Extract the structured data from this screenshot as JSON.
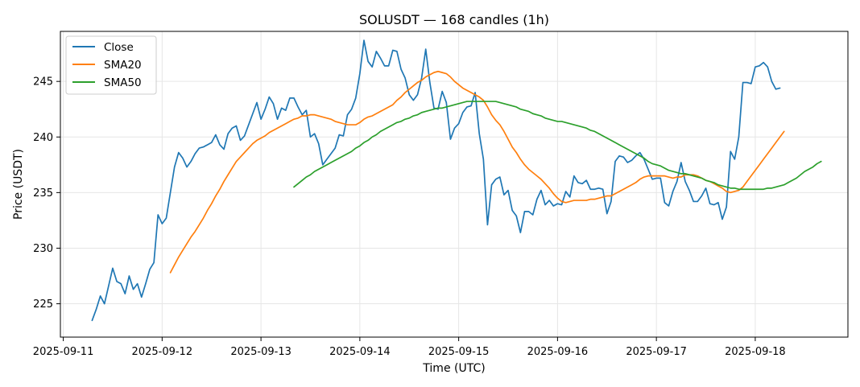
{
  "chart_data": {
    "type": "line",
    "title": "SOLUSDT — 168 candles (1h)",
    "xlabel": "Time (UTC)",
    "ylabel": "Price (USDT)",
    "x_ticks": [
      "2025-09-11",
      "2025-09-12",
      "2025-09-13",
      "2025-09-14",
      "2025-09-15",
      "2025-09-16",
      "2025-09-17",
      "2025-09-18"
    ],
    "y_ticks": [
      225,
      230,
      235,
      240,
      245
    ],
    "ylim": [
      222,
      249.5
    ],
    "xlim_hours": [
      -7.7,
      183.5
    ],
    "x_start": "2025-09-11 07:00",
    "x_step_hours": 1,
    "grid": true,
    "legend_position": "upper-left",
    "series": [
      {
        "name": "Close",
        "color": "#1f77b4",
        "start_index": 0,
        "values": [
          223.5,
          224.5,
          225.7,
          225.0,
          226.6,
          228.2,
          227.0,
          226.8,
          225.9,
          227.5,
          226.3,
          226.8,
          225.6,
          226.8,
          228.1,
          228.7,
          233.0,
          232.2,
          232.7,
          235.0,
          237.3,
          238.6,
          238.1,
          237.3,
          237.8,
          238.5,
          239.0,
          239.1,
          239.3,
          239.5,
          240.2,
          239.3,
          238.9,
          240.3,
          240.8,
          241.0,
          239.7,
          240.1,
          241.1,
          242.1,
          243.1,
          241.6,
          242.5,
          243.6,
          243.0,
          241.6,
          242.6,
          242.4,
          243.5,
          243.5,
          242.7,
          242.0,
          242.4,
          240.0,
          240.3,
          239.4,
          237.5,
          238.0,
          238.5,
          239.0,
          240.2,
          240.1,
          242.0,
          242.5,
          243.5,
          245.7,
          248.7,
          246.8,
          246.3,
          247.7,
          247.1,
          246.4,
          246.4,
          247.8,
          247.7,
          246.1,
          245.3,
          243.8,
          243.3,
          243.8,
          245.3,
          247.9,
          244.9,
          242.6,
          242.5,
          244.1,
          243.1,
          239.8,
          240.8,
          241.2,
          242.2,
          242.7,
          242.8,
          244.0,
          240.3,
          238.0,
          232.1,
          235.7,
          236.2,
          236.4,
          234.8,
          235.2,
          233.4,
          232.9,
          231.4,
          233.3,
          233.3,
          233.0,
          234.4,
          235.2,
          233.9,
          234.3,
          233.8,
          234.0,
          233.9,
          235.1,
          234.6,
          236.5,
          235.9,
          235.8,
          236.1,
          235.3,
          235.3,
          235.4,
          235.3,
          233.1,
          234.2,
          237.8,
          238.3,
          238.2,
          237.7,
          237.9,
          238.3,
          238.6,
          238.0,
          237.1,
          236.2,
          236.3,
          236.3,
          234.1,
          233.8,
          235.1,
          236.0,
          237.7,
          236.0,
          235.2,
          234.2,
          234.2,
          234.7,
          235.4,
          234.0,
          233.9,
          234.1,
          232.6,
          233.7,
          238.7,
          238.0,
          240.0,
          244.9,
          244.9,
          244.8,
          246.3,
          246.4,
          246.7,
          246.3,
          245.0,
          244.3,
          244.4
        ]
      },
      {
        "name": "SMA20",
        "color": "#ff7f0e",
        "start_index": 19,
        "values": [
          227.8,
          228.5,
          229.2,
          229.8,
          230.4,
          231.0,
          231.5,
          232.1,
          232.7,
          233.4,
          234.0,
          234.7,
          235.3,
          236.0,
          236.6,
          237.2,
          237.8,
          238.2,
          238.6,
          239.0,
          239.4,
          239.7,
          239.9,
          240.1,
          240.4,
          240.6,
          240.8,
          241.0,
          241.2,
          241.4,
          241.6,
          241.7,
          241.9,
          241.9,
          242.0,
          242.0,
          241.9,
          241.8,
          241.7,
          241.6,
          241.4,
          241.3,
          241.2,
          241.1,
          241.1,
          241.1,
          241.3,
          241.6,
          241.8,
          241.9,
          242.1,
          242.3,
          242.5,
          242.7,
          242.9,
          243.3,
          243.6,
          244.0,
          244.3,
          244.6,
          244.9,
          245.1,
          245.4,
          245.6,
          245.8,
          245.9,
          245.8,
          245.7,
          245.4,
          245.0,
          244.7,
          244.4,
          244.2,
          244.0,
          243.8,
          243.6,
          243.3,
          242.7,
          242.0,
          241.5,
          241.1,
          240.5,
          239.8,
          239.1,
          238.6,
          238.0,
          237.5,
          237.1,
          236.8,
          236.5,
          236.2,
          235.8,
          235.4,
          234.9,
          234.5,
          234.2,
          234.1,
          234.2,
          234.3,
          234.3,
          234.3,
          234.3,
          234.4,
          234.4,
          234.5,
          234.6,
          234.7,
          234.7,
          234.9,
          235.1,
          235.3,
          235.5,
          235.7,
          235.9,
          236.2,
          236.4,
          236.5,
          236.5,
          236.5,
          236.5,
          236.5,
          236.4,
          236.3,
          236.4,
          236.4,
          236.6,
          236.6,
          236.6,
          236.5,
          236.3,
          236.1,
          236.0,
          235.8,
          235.6,
          235.4,
          235.1,
          235.0,
          235.1,
          235.2,
          235.5,
          236.0,
          236.5,
          237.0,
          237.5,
          238.0,
          238.5,
          239.0,
          239.5,
          240.0,
          240.5
        ]
      },
      {
        "name": "SMA50",
        "color": "#2ca02c",
        "start_index": 49,
        "values": [
          235.5,
          235.8,
          236.1,
          236.4,
          236.6,
          236.9,
          237.1,
          237.3,
          237.5,
          237.7,
          237.9,
          238.1,
          238.3,
          238.5,
          238.7,
          239.0,
          239.2,
          239.5,
          239.7,
          240.0,
          240.2,
          240.5,
          240.7,
          240.9,
          241.1,
          241.3,
          241.4,
          241.6,
          241.7,
          241.9,
          242.0,
          242.2,
          242.3,
          242.4,
          242.5,
          242.6,
          242.6,
          242.7,
          242.8,
          242.9,
          243.0,
          243.1,
          243.2,
          243.2,
          243.2,
          243.2,
          243.2,
          243.2,
          243.2,
          243.2,
          243.1,
          243.0,
          242.9,
          242.8,
          242.7,
          242.5,
          242.4,
          242.3,
          242.1,
          242.0,
          241.9,
          241.7,
          241.6,
          241.5,
          241.4,
          241.4,
          241.3,
          241.2,
          241.1,
          241.0,
          240.9,
          240.8,
          240.6,
          240.5,
          240.3,
          240.1,
          239.9,
          239.7,
          239.5,
          239.3,
          239.1,
          238.9,
          238.7,
          238.5,
          238.3,
          238.1,
          237.8,
          237.6,
          237.5,
          237.4,
          237.2,
          237.0,
          236.9,
          236.8,
          236.7,
          236.7,
          236.6,
          236.5,
          236.4,
          236.3,
          236.1,
          236.0,
          235.9,
          235.7,
          235.6,
          235.5,
          235.4,
          235.4,
          235.3,
          235.3,
          235.3,
          235.3,
          235.3,
          235.3,
          235.3,
          235.4,
          235.4,
          235.5,
          235.6,
          235.7,
          235.9,
          236.1,
          236.3,
          236.6,
          236.9,
          237.1,
          237.3,
          237.6,
          237.8
        ]
      }
    ]
  }
}
